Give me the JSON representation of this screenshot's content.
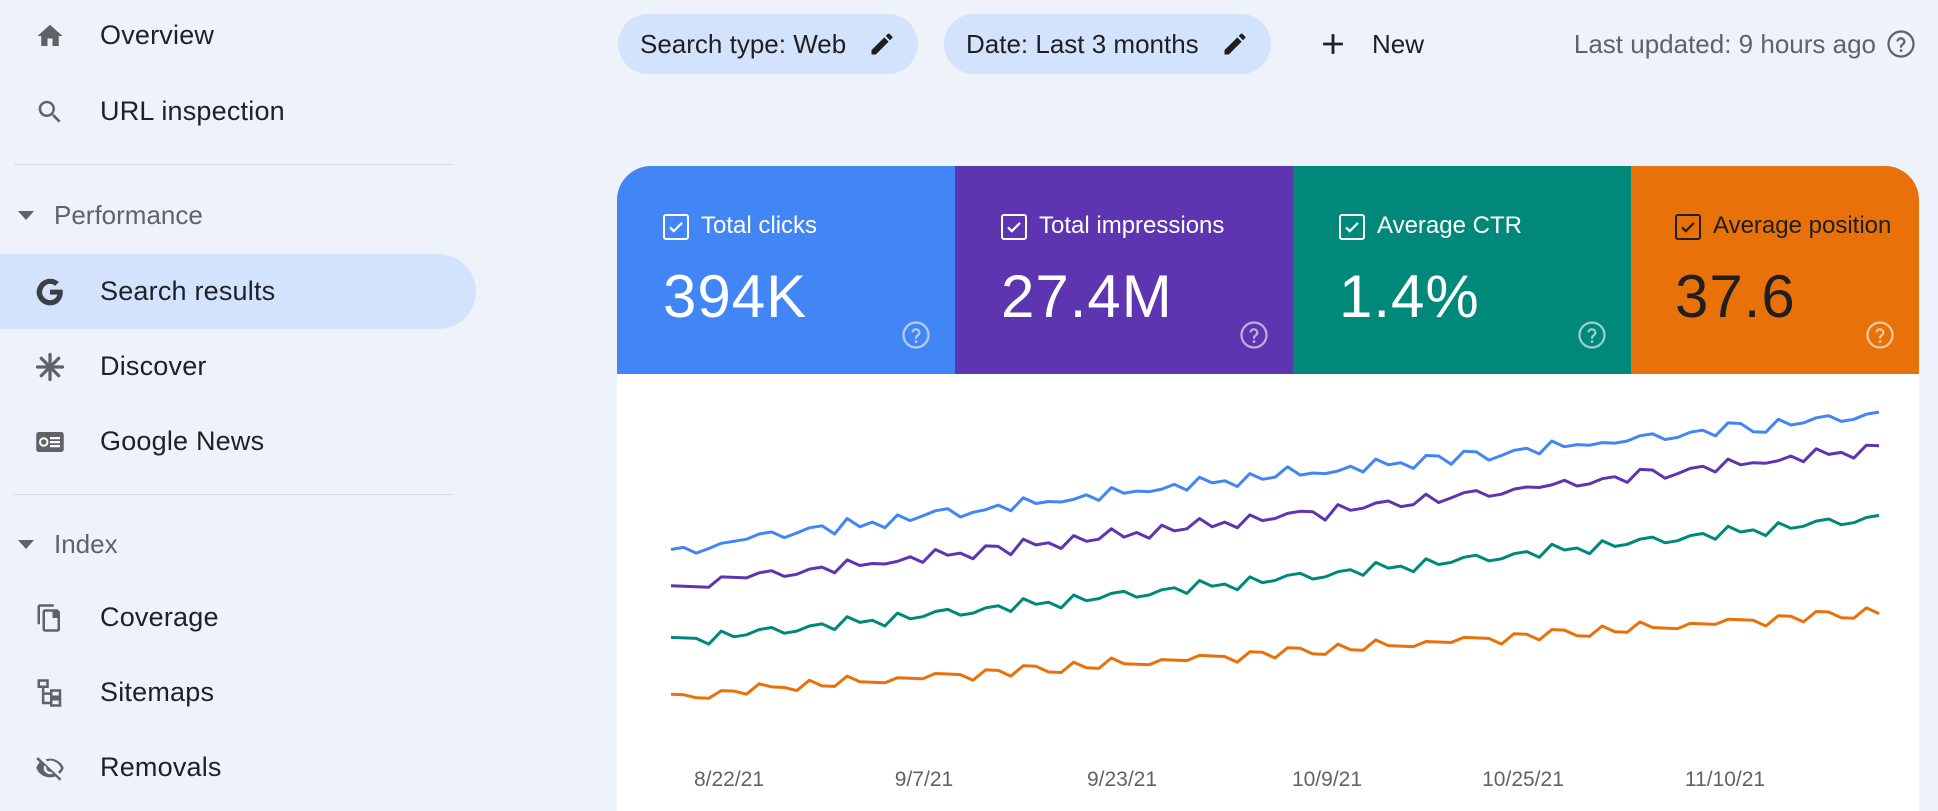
{
  "sidebar": {
    "overview": "Overview",
    "url_inspection": "URL inspection",
    "performance_section": "Performance",
    "search_results": "Search results",
    "discover": "Discover",
    "google_news": "Google News",
    "index_section": "Index",
    "coverage": "Coverage",
    "sitemaps": "Sitemaps",
    "removals": "Removals"
  },
  "toolbar": {
    "search_type": "Search type: Web",
    "date": "Date: Last 3 months",
    "new_label": "New",
    "last_updated": "Last updated: 9 hours ago"
  },
  "metrics": [
    {
      "title": "Total clicks",
      "value": "394K",
      "color": "#4285f4",
      "checked": true
    },
    {
      "title": "Total impressions",
      "value": "27.4M",
      "color": "#5e35b1",
      "checked": true
    },
    {
      "title": "Average CTR",
      "value": "1.4%",
      "color": "#00897b",
      "checked": true
    },
    {
      "title": "Average position",
      "value": "37.6",
      "color": "#e8710a",
      "checked": true
    }
  ],
  "chart_data": {
    "type": "line",
    "x_tick_labels": [
      "8/22/21",
      "9/7/21",
      "9/23/21",
      "10/9/21",
      "10/25/21",
      "11/10/21"
    ],
    "series": [
      {
        "name": "Total clicks",
        "color": "#4285f4",
        "values": [
          0.62,
          0.6,
          0.61,
          0.58,
          0.59,
          0.57,
          0.55,
          0.56,
          0.54,
          0.55,
          0.52,
          0.53,
          0.51,
          0.53,
          0.5,
          0.52,
          0.49,
          0.5,
          0.48,
          0.49,
          0.46,
          0.47,
          0.45,
          0.47,
          0.44,
          0.46,
          0.43,
          0.44,
          0.42,
          0.43,
          0.41,
          0.4,
          0.42,
          0.39,
          0.4,
          0.38,
          0.39,
          0.37,
          0.36,
          0.38,
          0.35,
          0.36,
          0.34,
          0.35,
          0.33,
          0.34,
          0.32,
          0.33,
          0.31,
          0.3,
          0.32,
          0.3,
          0.29,
          0.31,
          0.28,
          0.29,
          0.27,
          0.28,
          0.26,
          0.27,
          0.25,
          0.24,
          0.26,
          0.24,
          0.23,
          0.25,
          0.22,
          0.23,
          0.21,
          0.22,
          0.2,
          0.21,
          0.19,
          0.18,
          0.2,
          0.19,
          0.17,
          0.18,
          0.16,
          0.17,
          0.15,
          0.16,
          0.14,
          0.15,
          0.13,
          0.12,
          0.14,
          0.13,
          0.11,
          0.12,
          0.1,
          0.11,
          0.09,
          0.1,
          0.08,
          0.09,
          0.07
        ]
      },
      {
        "name": "Total impressions",
        "color": "#5e35b1",
        "values": [
          0.76,
          0.75,
          0.74,
          0.73,
          0.72,
          0.71,
          0.7,
          0.71,
          0.69,
          0.7,
          0.68,
          0.69,
          0.67,
          0.68,
          0.66,
          0.67,
          0.65,
          0.64,
          0.66,
          0.63,
          0.64,
          0.62,
          0.63,
          0.61,
          0.62,
          0.6,
          0.59,
          0.61,
          0.58,
          0.59,
          0.57,
          0.58,
          0.56,
          0.57,
          0.55,
          0.54,
          0.56,
          0.53,
          0.54,
          0.52,
          0.53,
          0.51,
          0.5,
          0.52,
          0.49,
          0.5,
          0.48,
          0.49,
          0.47,
          0.48,
          0.46,
          0.45,
          0.47,
          0.44,
          0.45,
          0.43,
          0.44,
          0.42,
          0.43,
          0.41,
          0.4,
          0.42,
          0.39,
          0.4,
          0.38,
          0.39,
          0.37,
          0.38,
          0.36,
          0.35,
          0.37,
          0.34,
          0.35,
          0.33,
          0.34,
          0.32,
          0.33,
          0.31,
          0.3,
          0.32,
          0.29,
          0.3,
          0.28,
          0.29,
          0.27,
          0.28,
          0.26,
          0.25,
          0.27,
          0.24,
          0.25,
          0.23,
          0.24,
          0.22,
          0.23,
          0.21,
          0.2
        ]
      },
      {
        "name": "Average CTR",
        "color": "#00897b",
        "values": [
          0.96,
          0.95,
          0.94,
          0.95,
          0.93,
          0.94,
          0.92,
          0.93,
          0.91,
          0.92,
          0.9,
          0.91,
          0.89,
          0.9,
          0.88,
          0.89,
          0.87,
          0.88,
          0.86,
          0.87,
          0.85,
          0.86,
          0.84,
          0.85,
          0.83,
          0.84,
          0.82,
          0.83,
          0.81,
          0.82,
          0.8,
          0.81,
          0.79,
          0.8,
          0.78,
          0.79,
          0.77,
          0.78,
          0.76,
          0.77,
          0.75,
          0.76,
          0.74,
          0.75,
          0.73,
          0.74,
          0.72,
          0.73,
          0.71,
          0.72,
          0.7,
          0.71,
          0.69,
          0.7,
          0.68,
          0.69,
          0.67,
          0.68,
          0.66,
          0.67,
          0.65,
          0.66,
          0.64,
          0.65,
          0.63,
          0.64,
          0.62,
          0.63,
          0.61,
          0.62,
          0.6,
          0.61,
          0.59,
          0.6,
          0.58,
          0.59,
          0.57,
          0.58,
          0.56,
          0.57,
          0.55,
          0.56,
          0.54,
          0.55,
          0.53,
          0.54,
          0.52,
          0.53,
          0.51,
          0.52,
          0.5,
          0.51,
          0.49,
          0.5,
          0.48,
          0.49,
          0.47
        ]
      },
      {
        "name": "Average position",
        "color": "#e8710a",
        "values": [
          1.18,
          1.17,
          1.17,
          1.16,
          1.16,
          1.15,
          1.15,
          1.14,
          1.14,
          1.13,
          1.13,
          1.12,
          1.13,
          1.12,
          1.11,
          1.12,
          1.11,
          1.1,
          1.11,
          1.1,
          1.09,
          1.1,
          1.09,
          1.08,
          1.09,
          1.08,
          1.07,
          1.08,
          1.07,
          1.06,
          1.07,
          1.06,
          1.05,
          1.06,
          1.05,
          1.04,
          1.05,
          1.04,
          1.03,
          1.04,
          1.03,
          1.02,
          1.03,
          1.02,
          1.01,
          1.02,
          1.01,
          1.0,
          1.01,
          1.0,
          0.99,
          1.0,
          0.99,
          0.98,
          0.99,
          0.98,
          0.97,
          0.98,
          0.97,
          0.96,
          0.97,
          0.96,
          0.95,
          0.96,
          0.95,
          0.94,
          0.95,
          0.94,
          0.93,
          0.94,
          0.93,
          0.92,
          0.93,
          0.92,
          0.91,
          0.92,
          0.91,
          0.9,
          0.91,
          0.9,
          0.89,
          0.9,
          0.89,
          0.88,
          0.89,
          0.88,
          0.87,
          0.88,
          0.87,
          0.86,
          0.87,
          0.86,
          0.85,
          0.86,
          0.85,
          0.84,
          0.85
        ]
      }
    ]
  }
}
